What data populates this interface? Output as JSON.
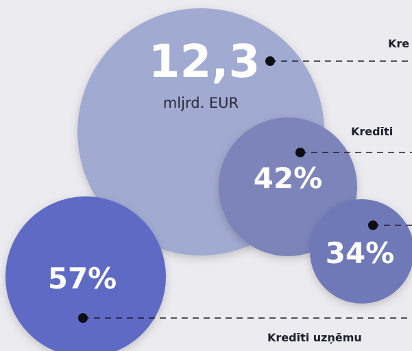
{
  "bubbles": [
    {
      "value": "12,3",
      "unit": "mljrd. EUR"
    },
    {
      "value": "42%"
    },
    {
      "value": "34%"
    },
    {
      "value": "57%"
    }
  ],
  "labels": [
    "Kre",
    "Kredīti",
    "Kredīti uzņēmu"
  ]
}
